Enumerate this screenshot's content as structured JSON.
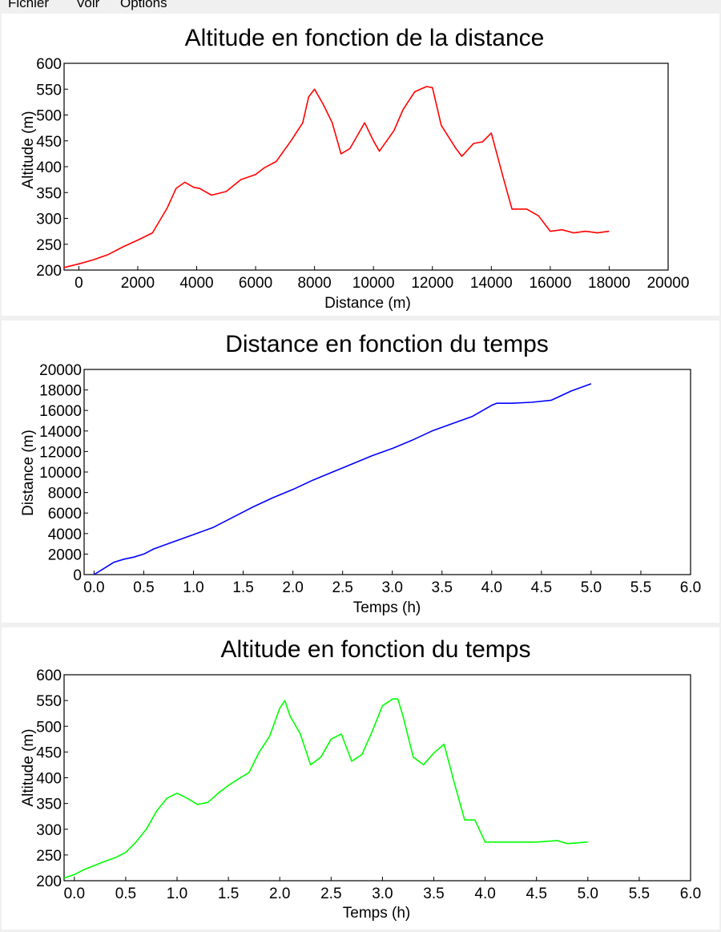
{
  "menu": [
    "Fichier",
    "Voir",
    "Options"
  ],
  "chart_data": [
    {
      "type": "line",
      "title": "Altitude en fonction de la distance",
      "xlabel": "Distance (m)",
      "ylabel": "Altitude (m)",
      "xlim": [
        -500,
        20000
      ],
      "ylim": [
        200,
        600
      ],
      "xticks": [
        0,
        2000,
        4000,
        6000,
        8000,
        10000,
        12000,
        14000,
        16000,
        18000,
        20000
      ],
      "yticks": [
        200,
        250,
        300,
        350,
        400,
        450,
        500,
        550,
        600
      ],
      "tick_decimals": 0,
      "color": "#ff0000",
      "series": [
        {
          "x": [
            -500,
            0,
            500,
            1000,
            1500,
            2000,
            2500,
            3000,
            3300,
            3600,
            3900,
            4100,
            4500,
            5000,
            5500,
            6000,
            6300,
            6700,
            7200,
            7600,
            7800,
            8000,
            8300,
            8600,
            8900,
            9200,
            9500,
            9700,
            10000,
            10200,
            10700,
            11000,
            11400,
            11800,
            12000,
            12300,
            12800,
            13000,
            13400,
            13700,
            14000,
            14400,
            14700,
            15200,
            15600,
            16000,
            16400,
            16800,
            17200,
            17600,
            18000
          ],
          "y": [
            205,
            212,
            220,
            230,
            245,
            258,
            272,
            320,
            358,
            370,
            360,
            358,
            345,
            352,
            375,
            385,
            398,
            410,
            450,
            485,
            535,
            550,
            520,
            485,
            425,
            435,
            465,
            485,
            450,
            430,
            470,
            510,
            545,
            555,
            553,
            480,
            435,
            420,
            445,
            448,
            465,
            380,
            318,
            318,
            305,
            275,
            278,
            272,
            275,
            272,
            275
          ]
        }
      ]
    },
    {
      "type": "line",
      "title": "Distance en fonction du temps",
      "xlabel": "Temps (h)",
      "ylabel": "Distance (m)",
      "xlim": [
        -0.1,
        6.0
      ],
      "ylim": [
        0,
        20000
      ],
      "xticks": [
        0.0,
        0.5,
        1.0,
        1.5,
        2.0,
        2.5,
        3.0,
        3.5,
        4.0,
        4.5,
        5.0,
        5.5,
        6.0
      ],
      "yticks": [
        0,
        2000,
        4000,
        6000,
        8000,
        10000,
        12000,
        14000,
        16000,
        18000,
        20000
      ],
      "tick_decimals": 1,
      "ytick_decimals": 0,
      "color": "#0000ff",
      "series": [
        {
          "x": [
            0.0,
            0.1,
            0.2,
            0.3,
            0.4,
            0.5,
            0.6,
            0.8,
            1.0,
            1.2,
            1.4,
            1.6,
            1.8,
            2.0,
            2.2,
            2.4,
            2.6,
            2.8,
            3.0,
            3.2,
            3.4,
            3.6,
            3.8,
            4.0,
            4.05,
            4.2,
            4.4,
            4.6,
            4.8,
            5.0
          ],
          "y": [
            0,
            600,
            1200,
            1500,
            1700,
            2000,
            2500,
            3200,
            3900,
            4600,
            5600,
            6600,
            7500,
            8300,
            9200,
            10000,
            10800,
            11600,
            12300,
            13100,
            14000,
            14700,
            15400,
            16500,
            16700,
            16700,
            16800,
            17000,
            17900,
            18600
          ]
        }
      ]
    },
    {
      "type": "line",
      "title": "Altitude en fonction du temps",
      "xlabel": "Temps (h)",
      "ylabel": "Altitude (m)",
      "xlim": [
        -0.1,
        6.0
      ],
      "ylim": [
        200,
        600
      ],
      "xticks": [
        0.0,
        0.5,
        1.0,
        1.5,
        2.0,
        2.5,
        3.0,
        3.5,
        4.0,
        4.5,
        5.0,
        5.5,
        6.0
      ],
      "yticks": [
        200,
        250,
        300,
        350,
        400,
        450,
        500,
        550,
        600
      ],
      "tick_decimals": 1,
      "ytick_decimals": 0,
      "color": "#00ff00",
      "series": [
        {
          "x": [
            -0.1,
            0.0,
            0.1,
            0.2,
            0.3,
            0.4,
            0.5,
            0.6,
            0.7,
            0.8,
            0.9,
            1.0,
            1.1,
            1.2,
            1.3,
            1.4,
            1.5,
            1.6,
            1.7,
            1.8,
            1.9,
            2.0,
            2.05,
            2.1,
            2.2,
            2.3,
            2.4,
            2.5,
            2.6,
            2.7,
            2.8,
            2.9,
            3.0,
            3.1,
            3.15,
            3.2,
            3.3,
            3.4,
            3.5,
            3.6,
            3.7,
            3.8,
            3.9,
            4.0,
            4.1,
            4.3,
            4.5,
            4.7,
            4.8,
            5.0
          ],
          "y": [
            205,
            212,
            222,
            230,
            238,
            245,
            255,
            275,
            300,
            335,
            360,
            370,
            360,
            348,
            352,
            370,
            385,
            398,
            410,
            450,
            480,
            535,
            550,
            520,
            485,
            425,
            440,
            475,
            485,
            432,
            445,
            490,
            540,
            553,
            553,
            520,
            440,
            425,
            448,
            465,
            390,
            318,
            318,
            275,
            275,
            275,
            275,
            278,
            272,
            275
          ]
        }
      ]
    }
  ]
}
